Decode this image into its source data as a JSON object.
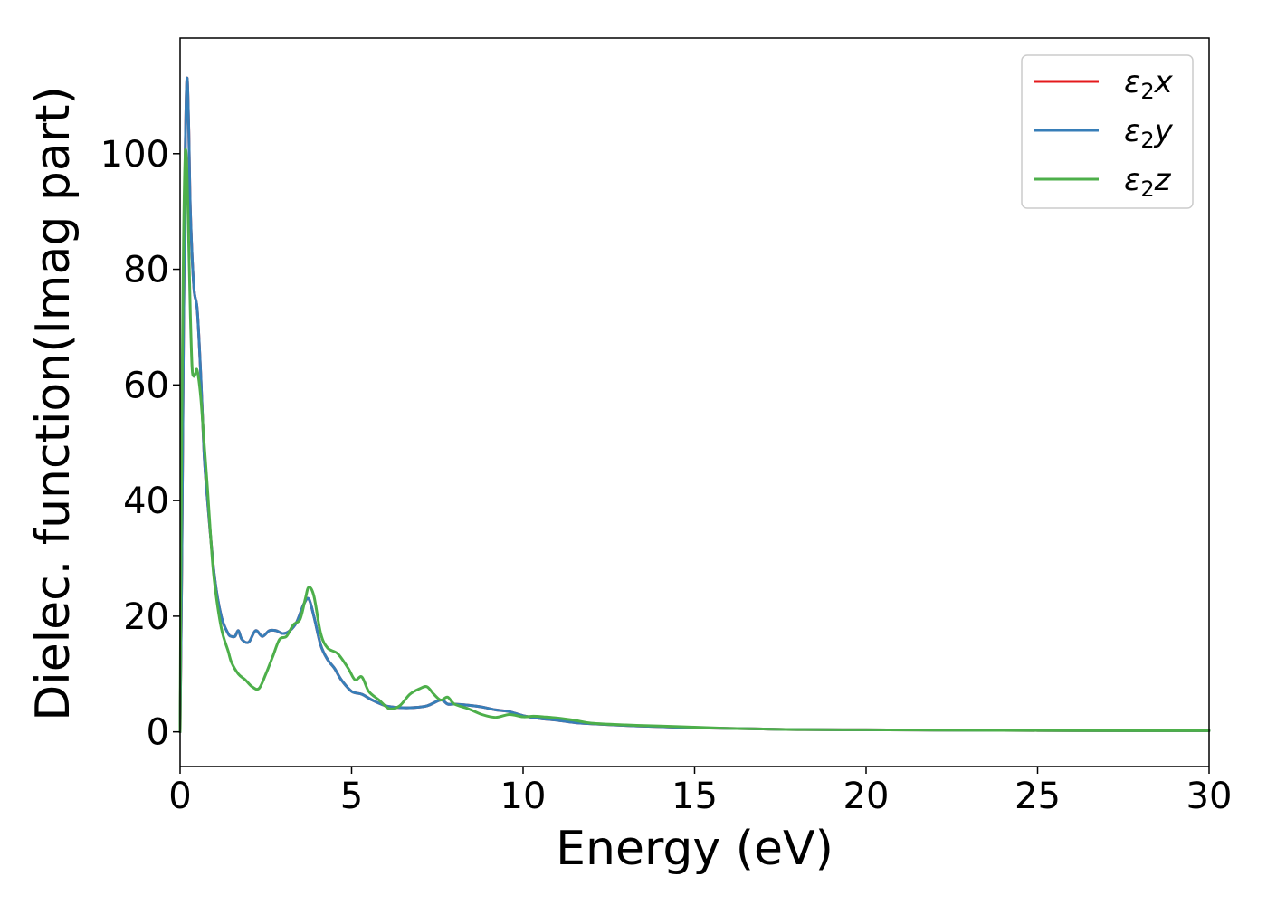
{
  "chart_data": {
    "type": "line",
    "xlabel": "Energy (eV)",
    "ylabel": "Dielec. function(Imag part)",
    "xlim": [
      0,
      30
    ],
    "ylim": [
      -6,
      120
    ],
    "xticks": [
      0,
      5,
      10,
      15,
      20,
      25,
      30
    ],
    "yticks": [
      0,
      20,
      40,
      60,
      80,
      100
    ],
    "grid": false,
    "legend_position": "top-right",
    "series": [
      {
        "name": "ε2x",
        "legend": {
          "symbol": "ε",
          "sub": "2",
          "axis": "x"
        },
        "color": "#e41a1c",
        "x": [
          0,
          0.05,
          0.1,
          0.15,
          0.2,
          0.25,
          0.3,
          0.4,
          0.5,
          0.6,
          0.7,
          0.8,
          1.0,
          1.2,
          1.4,
          1.5,
          1.6,
          1.7,
          1.8,
          2.0,
          2.2,
          2.4,
          2.6,
          2.8,
          3.0,
          3.2,
          3.4,
          3.6,
          3.75,
          3.9,
          4.1,
          4.3,
          4.5,
          4.7,
          5.0,
          5.3,
          5.6,
          6.0,
          6.4,
          6.8,
          7.2,
          7.6,
          7.8,
          8.0,
          8.4,
          8.8,
          9.2,
          9.6,
          10.0,
          10.5,
          11.0,
          11.5,
          12.0,
          13.0,
          14.0,
          15.0,
          16.0,
          17.0,
          18.0,
          20.0,
          22.0,
          25.0,
          28.0,
          30.0
        ],
        "values": [
          0,
          30,
          70,
          100,
          113,
          105,
          90,
          77,
          73,
          62,
          48,
          40,
          27,
          20,
          17,
          16.5,
          16.5,
          17.5,
          16,
          15.5,
          17.5,
          16.5,
          17.5,
          17.5,
          17,
          17.5,
          19,
          22,
          23,
          20,
          15,
          12.5,
          11,
          9,
          7,
          6.5,
          5.5,
          4.5,
          4.2,
          4.2,
          4.5,
          5.5,
          4.8,
          4.8,
          4.6,
          4.3,
          3.8,
          3.5,
          2.8,
          2.3,
          2.0,
          1.6,
          1.4,
          1.1,
          0.9,
          0.7,
          0.6,
          0.5,
          0.4,
          0.35,
          0.3,
          0.25,
          0.2,
          0.2
        ]
      },
      {
        "name": "ε2y",
        "legend": {
          "symbol": "ε",
          "sub": "2",
          "axis": "y"
        },
        "color": "#377eb8",
        "x": [
          0,
          0.05,
          0.1,
          0.15,
          0.2,
          0.25,
          0.3,
          0.4,
          0.5,
          0.6,
          0.7,
          0.8,
          1.0,
          1.2,
          1.4,
          1.5,
          1.6,
          1.7,
          1.8,
          2.0,
          2.2,
          2.4,
          2.6,
          2.8,
          3.0,
          3.2,
          3.4,
          3.6,
          3.75,
          3.9,
          4.1,
          4.3,
          4.5,
          4.7,
          5.0,
          5.3,
          5.6,
          6.0,
          6.4,
          6.8,
          7.2,
          7.6,
          7.8,
          8.0,
          8.4,
          8.8,
          9.2,
          9.6,
          10.0,
          10.5,
          11.0,
          11.5,
          12.0,
          13.0,
          14.0,
          15.0,
          16.0,
          17.0,
          18.0,
          20.0,
          22.0,
          25.0,
          28.0,
          30.0
        ],
        "values": [
          0,
          30,
          70,
          100,
          113,
          105,
          90,
          77,
          73,
          62,
          48,
          40,
          27,
          20,
          17,
          16.5,
          16.5,
          17.5,
          16,
          15.5,
          17.5,
          16.5,
          17.5,
          17.5,
          17,
          17.5,
          19,
          22,
          23,
          20,
          15,
          12.5,
          11,
          9,
          7,
          6.5,
          5.5,
          4.5,
          4.2,
          4.2,
          4.5,
          5.5,
          4.8,
          4.8,
          4.6,
          4.3,
          3.8,
          3.5,
          2.8,
          2.3,
          2.0,
          1.6,
          1.4,
          1.1,
          0.9,
          0.7,
          0.6,
          0.5,
          0.4,
          0.35,
          0.3,
          0.25,
          0.2,
          0.2
        ]
      },
      {
        "name": "ε2z",
        "legend": {
          "symbol": "ε",
          "sub": "2",
          "axis": "z"
        },
        "color": "#4daf4a",
        "x": [
          0,
          0.05,
          0.1,
          0.15,
          0.2,
          0.25,
          0.3,
          0.35,
          0.4,
          0.45,
          0.5,
          0.6,
          0.7,
          0.8,
          0.9,
          1.0,
          1.2,
          1.4,
          1.5,
          1.7,
          1.9,
          2.1,
          2.3,
          2.5,
          2.7,
          2.9,
          3.1,
          3.3,
          3.5,
          3.65,
          3.75,
          3.9,
          4.1,
          4.3,
          4.6,
          4.9,
          5.1,
          5.3,
          5.5,
          5.8,
          6.1,
          6.4,
          6.7,
          7.0,
          7.2,
          7.4,
          7.6,
          7.8,
          8.0,
          8.4,
          8.8,
          9.2,
          9.6,
          10.0,
          10.3,
          10.6,
          11.0,
          11.5,
          12.0,
          13.0,
          14.0,
          15.0,
          16.0,
          17.0,
          18.0,
          20.0,
          22.0,
          25.0,
          28.0,
          30.0
        ],
        "values": [
          0,
          55,
          85,
          100,
          97,
          85,
          72,
          63,
          61.5,
          62,
          62.5,
          58,
          50,
          42,
          33,
          26,
          18,
          14,
          12,
          10,
          9,
          7.8,
          7.5,
          10,
          13,
          16,
          16.5,
          18.5,
          19.5,
          23,
          25,
          23.5,
          17,
          14.5,
          13.5,
          11,
          9,
          9.5,
          7,
          5.5,
          4,
          4.5,
          6.5,
          7.5,
          7.8,
          6.5,
          5.5,
          6,
          4.8,
          4,
          3,
          2.5,
          3,
          2.6,
          2.7,
          2.6,
          2.4,
          2,
          1.5,
          1.2,
          1.0,
          0.8,
          0.6,
          0.5,
          0.4,
          0.35,
          0.3,
          0.25,
          0.2,
          0.2
        ]
      }
    ]
  }
}
